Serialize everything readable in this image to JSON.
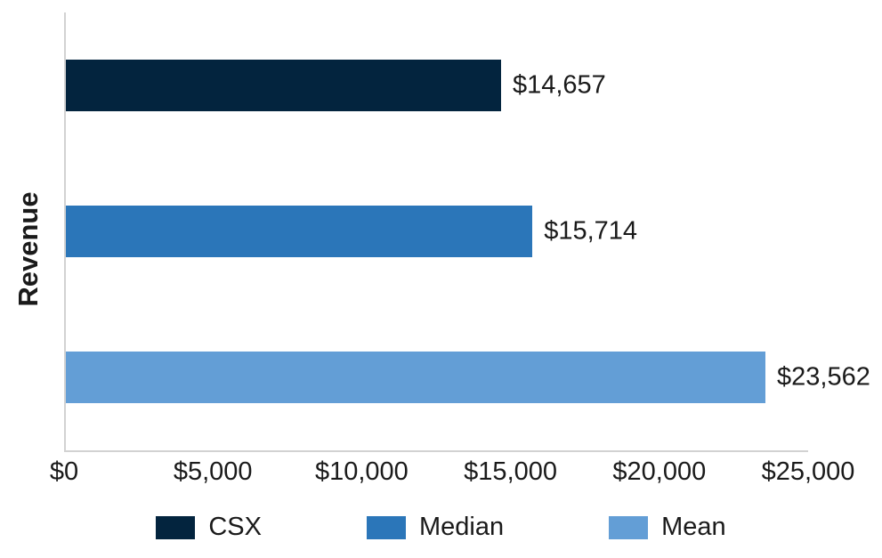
{
  "chart_data": {
    "type": "bar",
    "orientation": "horizontal",
    "title": "",
    "xlabel": "",
    "ylabel": "Revenue",
    "xlim": [
      0,
      25000
    ],
    "x_tick_values": [
      0,
      5000,
      10000,
      15000,
      20000,
      25000
    ],
    "x_tick_labels": [
      "$0",
      "$5,000",
      "$10,000",
      "$15,000",
      "$20,000",
      "$25,000"
    ],
    "grid": false,
    "legend_position": "bottom",
    "series": [
      {
        "name": "CSX",
        "value": 14657,
        "data_label": "$14,657",
        "color": "#03243e"
      },
      {
        "name": "Median",
        "value": 15714,
        "data_label": "$15,714",
        "color": "#2b76b9"
      },
      {
        "name": "Mean",
        "value": 23562,
        "data_label": "$23,562",
        "color": "#639ed6"
      }
    ]
  },
  "colors": {
    "axis_line": "#d2d2d2",
    "text": "#1a1a1a",
    "background": "#ffffff"
  }
}
